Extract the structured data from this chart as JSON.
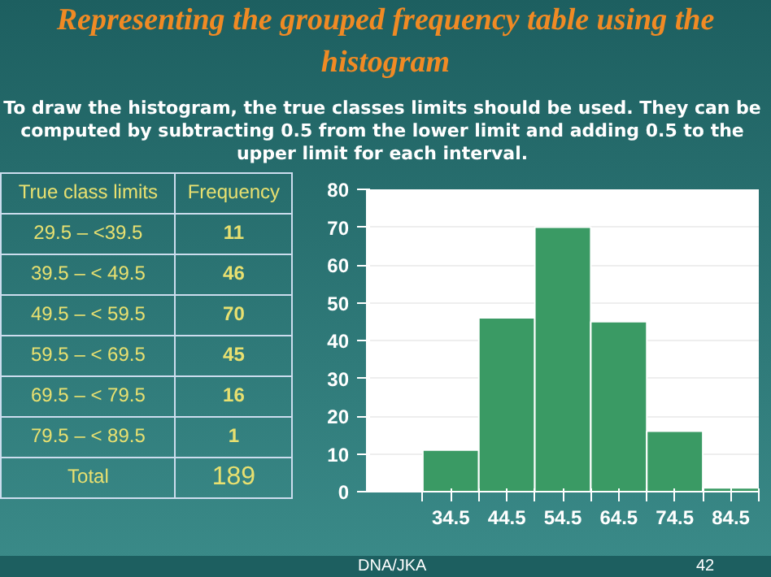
{
  "chart_data": {
    "type": "histogram",
    "title": "Representing the grouped frequency table using the histogram",
    "subtitle": "To draw the histogram, the true classes limits should be used. They can be computed by subtracting 0.5 from the lower limit and adding 0.5 to the upper limit for each interval.",
    "bins": [
      29.5,
      39.5,
      49.5,
      59.5,
      69.5,
      79.5,
      89.5
    ],
    "values": [
      11,
      46,
      70,
      45,
      16,
      1
    ],
    "color": "#3a9a64",
    "xlim": [
      19.5,
      89.5
    ],
    "xticks": [
      {
        "value": 29.5,
        "label": null
      },
      {
        "value": 34.5,
        "label": "34.5"
      },
      {
        "value": 39.5,
        "label": null
      },
      {
        "value": 44.5,
        "label": "44.5"
      },
      {
        "value": 49.5,
        "label": null
      },
      {
        "value": 54.5,
        "label": "54.5"
      },
      {
        "value": 59.5,
        "label": null
      },
      {
        "value": 64.5,
        "label": "64.5"
      },
      {
        "value": 69.5,
        "label": null
      },
      {
        "value": 74.5,
        "label": "74.5"
      },
      {
        "value": 79.5,
        "label": null
      },
      {
        "value": 84.5,
        "label": "84.5"
      },
      {
        "value": 89.5,
        "label": null
      }
    ],
    "ylim": [
      0,
      80
    ],
    "yticks": [
      0,
      10,
      20,
      30,
      40,
      50,
      60,
      70,
      80
    ],
    "grid": "y",
    "annotations": [
      "True class limits",
      "Frequency",
      "29.5 – <39.5",
      "11",
      "39.5 – < 49.5",
      "46",
      "49.5 – < 59.5",
      "70",
      "59.5 – < 69.5",
      "45",
      "69.5 – < 79.5",
      "16",
      "79.5 – < 89.5",
      "1",
      "Total",
      "189",
      "DNA/JKA",
      "42"
    ]
  }
}
